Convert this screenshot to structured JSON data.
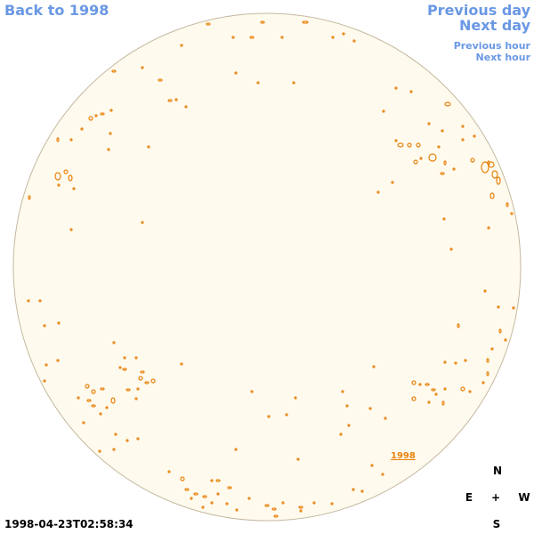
{
  "nav": {
    "back_label": "Back to 1998",
    "prev_day_label": "Previous day",
    "next_day_label": "Next day",
    "prev_hour_label": "Previous hour",
    "next_hour_label": "Next hour"
  },
  "sun": {
    "year_link": "1998"
  },
  "compass": {
    "north": "N",
    "east": "E",
    "center": "+",
    "west": "W",
    "south": "S"
  },
  "timestamp": "1998-04-23T02:58:34",
  "colors": {
    "link": "#6a98e4",
    "disk_fill": "#fffaee",
    "disk_edge": "#c4b9a0",
    "contour": "#e8820c"
  }
}
